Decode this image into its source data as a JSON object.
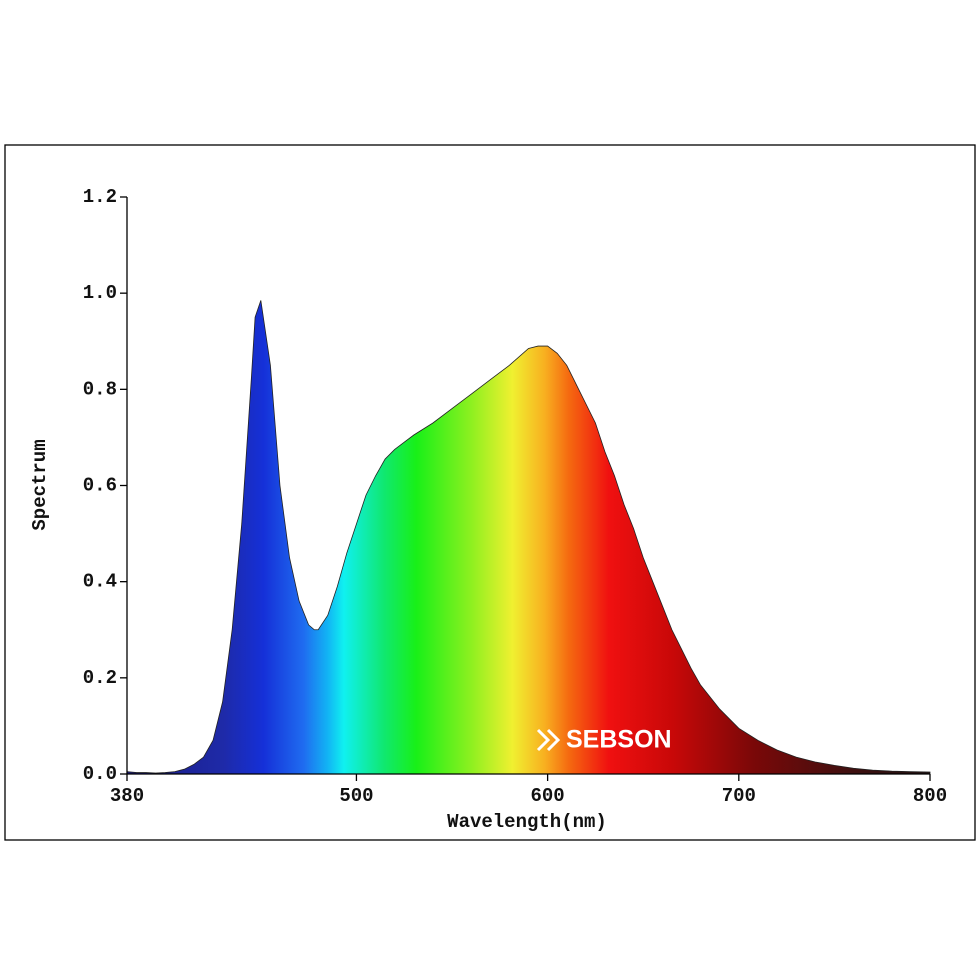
{
  "chart_data": {
    "type": "area",
    "xlabel": "Wavelength(nm)",
    "ylabel": "Spectrum",
    "watermark": "SEBSON",
    "x": [
      380,
      385,
      390,
      395,
      400,
      405,
      410,
      415,
      420,
      425,
      430,
      435,
      440,
      445,
      447,
      450,
      455,
      460,
      465,
      470,
      475,
      478,
      480,
      485,
      490,
      495,
      500,
      505,
      510,
      515,
      520,
      525,
      530,
      540,
      550,
      560,
      570,
      580,
      590,
      595,
      600,
      605,
      610,
      615,
      620,
      625,
      630,
      635,
      640,
      645,
      650,
      655,
      660,
      665,
      670,
      675,
      680,
      690,
      700,
      710,
      720,
      730,
      740,
      750,
      760,
      770,
      780,
      790,
      800
    ],
    "values": [
      0.005,
      0.003,
      0.003,
      0.002,
      0.003,
      0.005,
      0.01,
      0.02,
      0.035,
      0.07,
      0.15,
      0.3,
      0.52,
      0.82,
      0.95,
      0.985,
      0.85,
      0.6,
      0.45,
      0.36,
      0.31,
      0.3,
      0.3,
      0.33,
      0.39,
      0.46,
      0.52,
      0.58,
      0.62,
      0.655,
      0.675,
      0.69,
      0.705,
      0.73,
      0.76,
      0.79,
      0.82,
      0.85,
      0.885,
      0.89,
      0.89,
      0.875,
      0.85,
      0.81,
      0.77,
      0.73,
      0.67,
      0.62,
      0.56,
      0.51,
      0.45,
      0.4,
      0.35,
      0.3,
      0.26,
      0.22,
      0.185,
      0.135,
      0.095,
      0.07,
      0.05,
      0.035,
      0.025,
      0.018,
      0.012,
      0.008,
      0.006,
      0.005,
      0.004
    ],
    "xlim": [
      380,
      800
    ],
    "xticks": [
      380,
      500,
      600,
      700,
      800
    ],
    "ylim": [
      0,
      1.2
    ],
    "yticks": [
      {
        "value": 0,
        "label": "0.0"
      },
      0.2,
      0.4,
      0.6,
      0.8,
      {
        "value": 1,
        "label": "1.0"
      },
      1.2
    ],
    "grid": false
  }
}
